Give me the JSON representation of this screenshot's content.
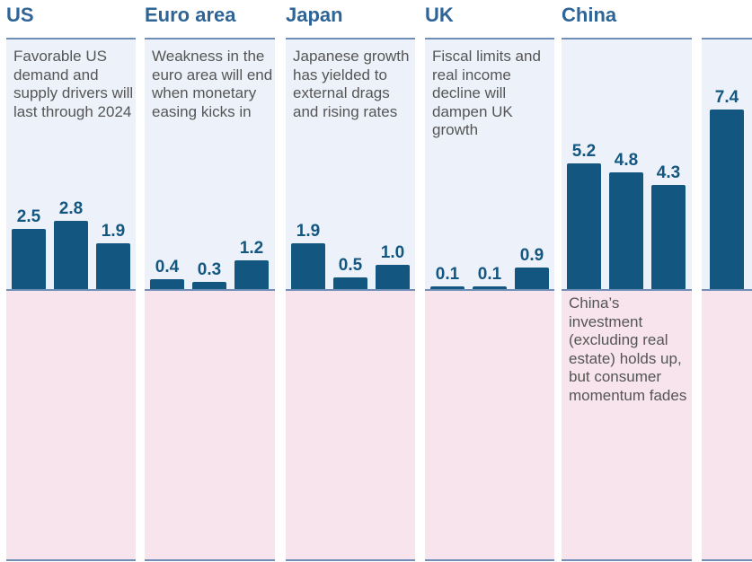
{
  "chart_data": {
    "type": "bar",
    "panels": [
      {
        "title": "US",
        "note_top": "Favorable US demand and supply drivers will last through 2024",
        "note_bottom": "",
        "values": [
          2.5,
          2.8,
          1.9
        ],
        "labels": [
          "2.5",
          "2.8",
          "1.9"
        ]
      },
      {
        "title": "Euro area",
        "note_top": "Weakness in the euro area will end when monetary easing kicks in",
        "note_bottom": "",
        "values": [
          0.4,
          0.3,
          1.2
        ],
        "labels": [
          "0.4",
          "0.3",
          "1.2"
        ]
      },
      {
        "title": "Japan",
        "note_top": "Japanese growth has yielded to external drags and rising rates",
        "note_bottom": "",
        "values": [
          1.9,
          0.5,
          1.0
        ],
        "labels": [
          "1.9",
          "0.5",
          "1.0"
        ]
      },
      {
        "title": "UK",
        "note_top": "Fiscal limits and real income decline will dampen UK growth",
        "note_bottom": "",
        "values": [
          0.1,
          0.1,
          0.9
        ],
        "labels": [
          "0.1",
          "0.1",
          "0.9"
        ]
      },
      {
        "title": "China",
        "note_top": "",
        "note_bottom": "China’s investment (excluding real estate) holds up, but consumer momentum fades",
        "values": [
          5.2,
          4.8,
          4.3
        ],
        "labels": [
          "5.2",
          "4.8",
          "4.3"
        ]
      },
      {
        "title": "",
        "note_top": "",
        "note_bottom": "",
        "values": [
          7.4
        ],
        "labels": [
          "7.4"
        ]
      }
    ],
    "ylim": [
      0,
      8.0
    ],
    "grid": false,
    "legend": "none"
  },
  "colors": {
    "bar": "#135680",
    "title": "#2e6496",
    "upper_bg": "#edf2fa",
    "lower_bg": "#f8e4ec"
  }
}
